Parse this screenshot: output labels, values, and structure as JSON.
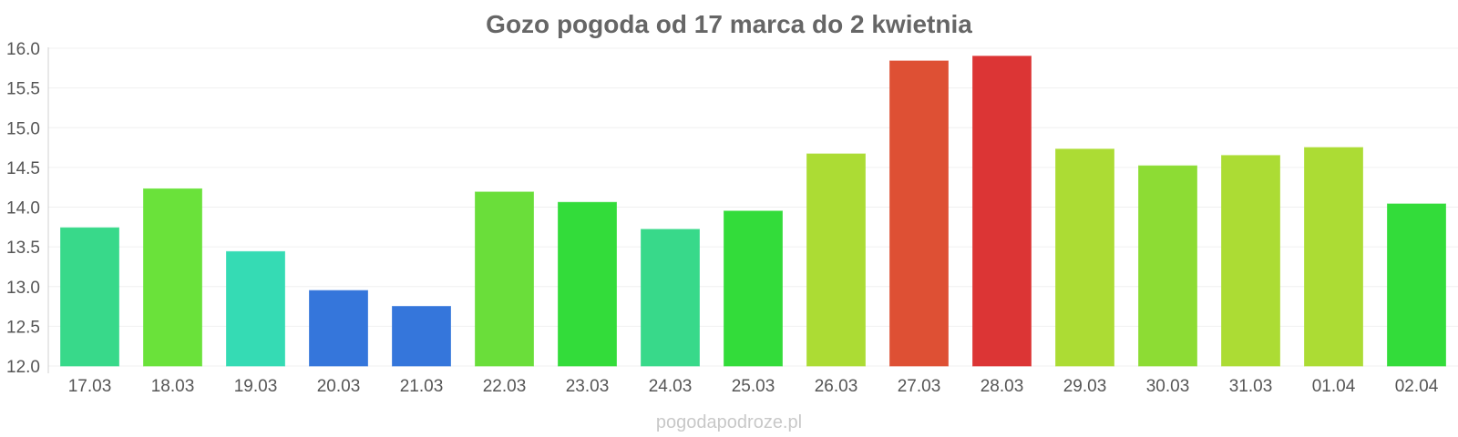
{
  "chart_data": {
    "type": "bar",
    "title": "Gozo pogoda od 17 marca do 2 kwietnia",
    "xlabel": "",
    "ylabel": "",
    "ylim": [
      12.0,
      16.0
    ],
    "yticks": [
      "12.0",
      "12.5",
      "13.0",
      "13.5",
      "14.0",
      "14.5",
      "15.0",
      "15.5",
      "16.0"
    ],
    "grid": true,
    "categories": [
      "17.03",
      "18.03",
      "19.03",
      "20.03",
      "21.03",
      "22.03",
      "23.03",
      "24.03",
      "25.03",
      "26.03",
      "27.03",
      "28.03",
      "29.03",
      "30.03",
      "31.03",
      "01.04",
      "02.04"
    ],
    "values": [
      13.74,
      14.23,
      13.44,
      12.95,
      12.75,
      14.19,
      14.06,
      13.72,
      13.95,
      14.67,
      15.84,
      15.9,
      14.73,
      14.52,
      14.65,
      14.75,
      14.04
    ],
    "colors": [
      "#38d98a",
      "#6ae23a",
      "#35dbb4",
      "#3576db",
      "#3576db",
      "#6ade3a",
      "#33dc3a",
      "#38d98a",
      "#33dc3a",
      "#acdc34",
      "#de5034",
      "#dc3535",
      "#acdc34",
      "#8ddc34",
      "#acdc34",
      "#acdc34",
      "#33dc3a"
    ]
  },
  "watermark": "pogodapodroze.pl"
}
